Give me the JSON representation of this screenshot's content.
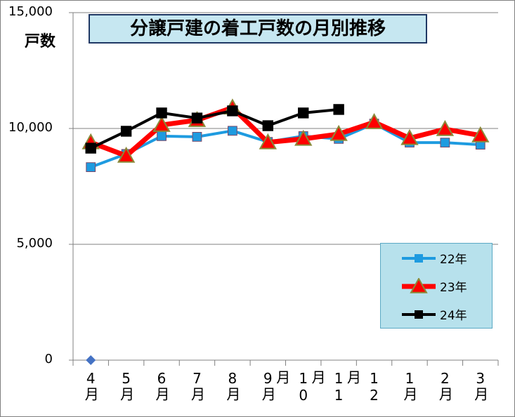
{
  "chart_data": {
    "type": "line",
    "title": "分譲戸建の着工戸数の月別推移",
    "ylabel": "戸数",
    "xlabel": "",
    "ylim": [
      0,
      15000
    ],
    "yticks": [
      0,
      5000,
      10000,
      15000
    ],
    "ytick_labels": [
      "0",
      "5,000",
      "10,000",
      "15,000"
    ],
    "grid": true,
    "legend_position": "right-bottom",
    "categories": [
      "4月",
      "5月",
      "6月",
      "7月",
      "8月",
      "9月",
      "10月",
      "11月",
      "12月",
      "1月",
      "2月",
      "3月"
    ],
    "series": [
      {
        "name": "22年",
        "color": "#1e9be0",
        "marker": "square",
        "values": [
          8330,
          8900,
          9670,
          9640,
          9900,
          9420,
          9670,
          9550,
          10210,
          9390,
          9390,
          9300
        ]
      },
      {
        "name": "23年",
        "color": "#ff0000",
        "marker": "triangle",
        "values": [
          9400,
          8820,
          10150,
          10360,
          10900,
          9400,
          9550,
          9760,
          10270,
          9580,
          9970,
          9700
        ]
      },
      {
        "name": "24年",
        "color": "#000000",
        "marker": "square",
        "values": [
          9150,
          9880,
          10670,
          10450,
          10760,
          10120,
          10670,
          10820,
          null,
          null,
          null,
          null
        ]
      }
    ],
    "extra_points": [
      {
        "category": "4月",
        "value": 0,
        "marker": "diamond",
        "color": "#4472c4"
      }
    ]
  }
}
